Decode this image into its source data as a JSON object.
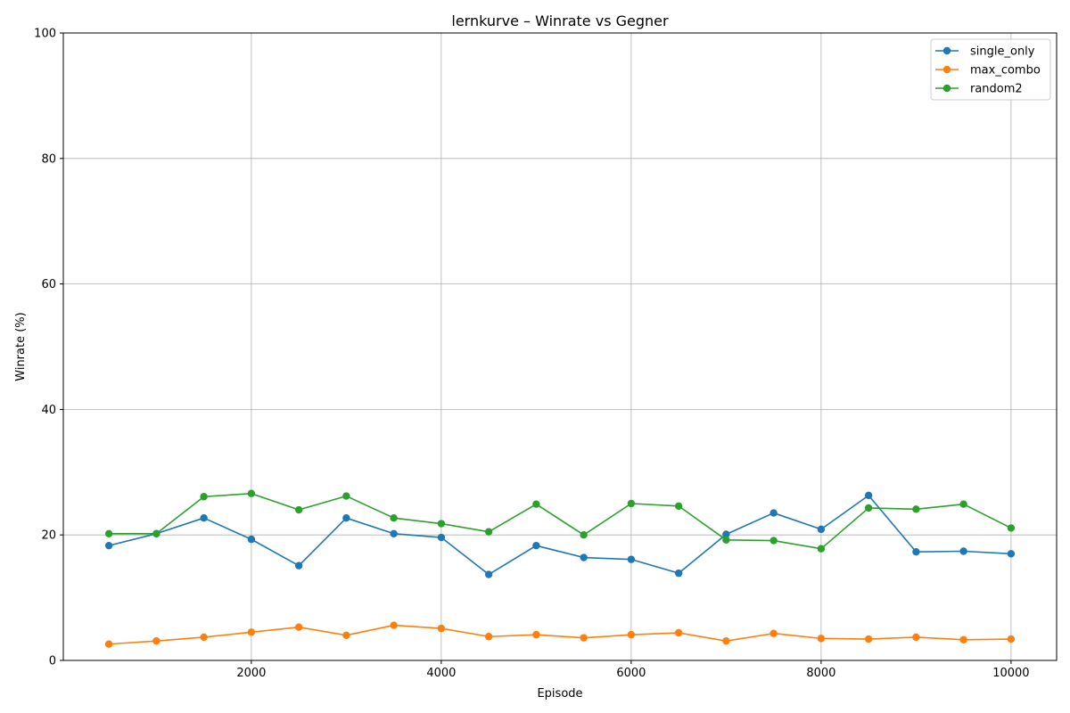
{
  "chart_data": {
    "type": "line",
    "title": "lernkurve – Winrate vs Gegner",
    "xlabel": "Episode",
    "ylabel": "Winrate (%)",
    "xlim": [
      20,
      10480
    ],
    "ylim": [
      0,
      100
    ],
    "xticks": [
      2000,
      4000,
      6000,
      8000,
      10000
    ],
    "yticks": [
      0,
      20,
      40,
      60,
      80,
      100
    ],
    "grid": true,
    "legend_position": "top-right",
    "x": [
      500,
      1000,
      1500,
      2000,
      2500,
      3000,
      3500,
      4000,
      4500,
      5000,
      5500,
      6000,
      6500,
      7000,
      7500,
      8000,
      8500,
      9000,
      9500,
      10000
    ],
    "series": [
      {
        "name": "single_only",
        "color": "#1f77b4",
        "values": [
          18.3,
          20.2,
          22.7,
          19.3,
          15.1,
          22.7,
          20.2,
          19.6,
          13.7,
          18.3,
          16.4,
          16.1,
          13.9,
          20.1,
          23.5,
          20.9,
          26.3,
          17.3,
          17.4,
          17.0
        ]
      },
      {
        "name": "max_combo",
        "color": "#ff7f0e",
        "values": [
          2.6,
          3.1,
          3.7,
          4.5,
          5.3,
          4.0,
          5.6,
          5.1,
          3.8,
          4.1,
          3.6,
          4.1,
          4.4,
          3.1,
          4.3,
          3.5,
          3.4,
          3.7,
          3.3,
          3.4
        ]
      },
      {
        "name": "random2",
        "color": "#2ca02c",
        "values": [
          20.2,
          20.2,
          26.1,
          26.6,
          24.0,
          26.2,
          22.7,
          21.8,
          20.5,
          24.9,
          20.0,
          25.0,
          24.6,
          19.2,
          19.1,
          17.8,
          24.3,
          24.1,
          24.9,
          21.1
        ]
      }
    ]
  }
}
